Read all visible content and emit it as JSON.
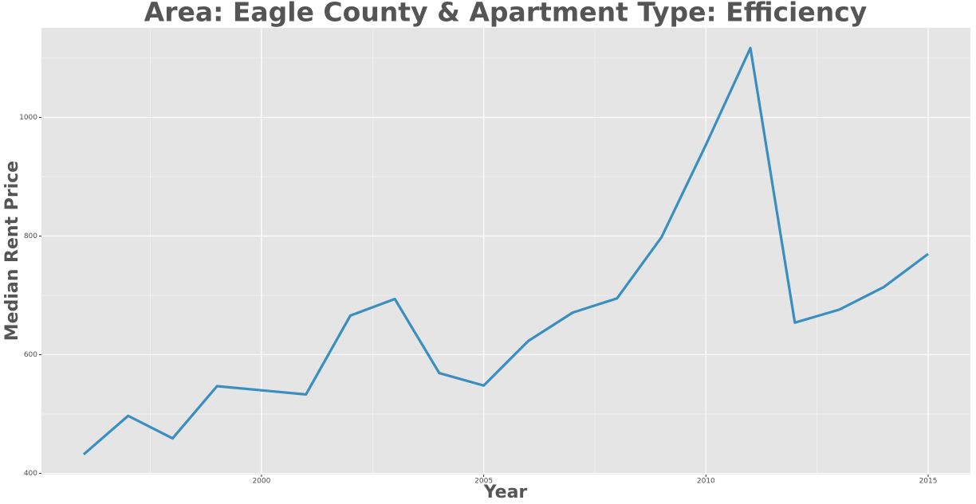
{
  "chart_data": {
    "type": "line",
    "title": "Area: Eagle County & Apartment Type: Efficiency",
    "x_label": "Year",
    "y_label": "Median Rent Price",
    "x": [
      1996,
      1997,
      1998,
      1999,
      2000,
      2001,
      2002,
      2003,
      2004,
      2005,
      2006,
      2007,
      2008,
      2009,
      2010,
      2011,
      2012,
      2013,
      2014,
      2015
    ],
    "series": [
      {
        "name": "Median Rent Price",
        "color": "#3a8fc0",
        "values": [
          432,
          497,
          459,
          547,
          540,
          533,
          666,
          694,
          569,
          548,
          623,
          671,
          695,
          798,
          954,
          1117,
          654,
          676,
          714,
          770
        ]
      }
    ],
    "xlim": [
      1995.05,
      2015.95
    ],
    "xticks": [
      2000,
      2005,
      2010,
      2015
    ],
    "ylim": [
      398,
      1151
    ],
    "yticks": [
      400,
      600,
      800,
      1000
    ],
    "grid": true
  }
}
